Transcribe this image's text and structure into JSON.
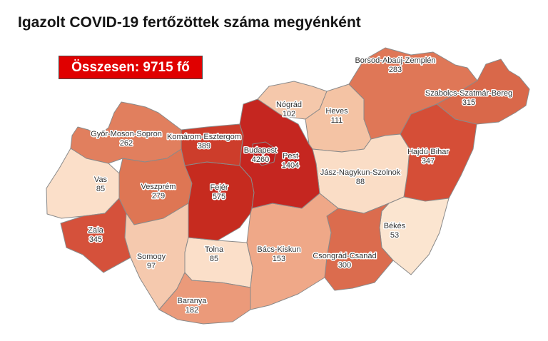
{
  "title": "Igazolt COVID-19 fertőzöttek száma megyénként",
  "banner": {
    "label": "Összesen: 9715 fő",
    "background": "#e00000",
    "text_color": "#ffffff"
  },
  "map_style": {
    "county_border_color": "#8a8a8a",
    "label_color": "#333333",
    "label_halo_color": "#ffffff"
  },
  "chart_data": {
    "type": "heatmap",
    "subtype": "choropleth-map-of-hungary-counties",
    "title": "Igazolt COVID-19 fertőzöttek száma megyénként",
    "total": {
      "label": "Összesen",
      "value": 9715,
      "unit": "fő"
    },
    "color_scale": {
      "low_value_color": "#fbe5d0",
      "high_value_color": "#c11c1a"
    },
    "regions": [
      {
        "name": "Győr-Moson-Sopron",
        "value": 262,
        "color": "#e17f5e"
      },
      {
        "name": "Vas",
        "value": 85,
        "color": "#fbdfc9"
      },
      {
        "name": "Zala",
        "value": 345,
        "color": "#d5513b"
      },
      {
        "name": "Veszprém",
        "value": 279,
        "color": "#de7654"
      },
      {
        "name": "Somogy",
        "value": 97,
        "color": "#f5c9ae"
      },
      {
        "name": "Tolna",
        "value": 85,
        "color": "#fbdfc9"
      },
      {
        "name": "Baranya",
        "value": 182,
        "color": "#eb9a7a"
      },
      {
        "name": "Fejér",
        "value": 575,
        "color": "#c62b1f"
      },
      {
        "name": "Komárom-Esztergom",
        "value": 389,
        "color": "#cd3d2b"
      },
      {
        "name": "Nógrád",
        "value": 102,
        "color": "#f5c8ab"
      },
      {
        "name": "Heves",
        "value": 111,
        "color": "#f4c3a4"
      },
      {
        "name": "Borsod-Abaúj-Zemplén",
        "value": 283,
        "color": "#df7757"
      },
      {
        "name": "Szabolcs-Szatmár-Bereg",
        "value": 315,
        "color": "#d9684a"
      },
      {
        "name": "Hajdú-Bihar",
        "value": 347,
        "color": "#d54e37"
      },
      {
        "name": "Jász-Nagykun-Szolnok",
        "value": 88,
        "color": "#faddc6"
      },
      {
        "name": "Békés",
        "value": 53,
        "color": "#fbe5d0"
      },
      {
        "name": "Csongrád-Csanád",
        "value": 300,
        "color": "#db6c4e"
      },
      {
        "name": "Bács-Kiskun",
        "value": 153,
        "color": "#efa888"
      },
      {
        "name": "Pest",
        "value": 1404,
        "color": "#c52620"
      },
      {
        "name": "Budapest",
        "value": 4260,
        "color": "#c11c1a"
      }
    ]
  }
}
